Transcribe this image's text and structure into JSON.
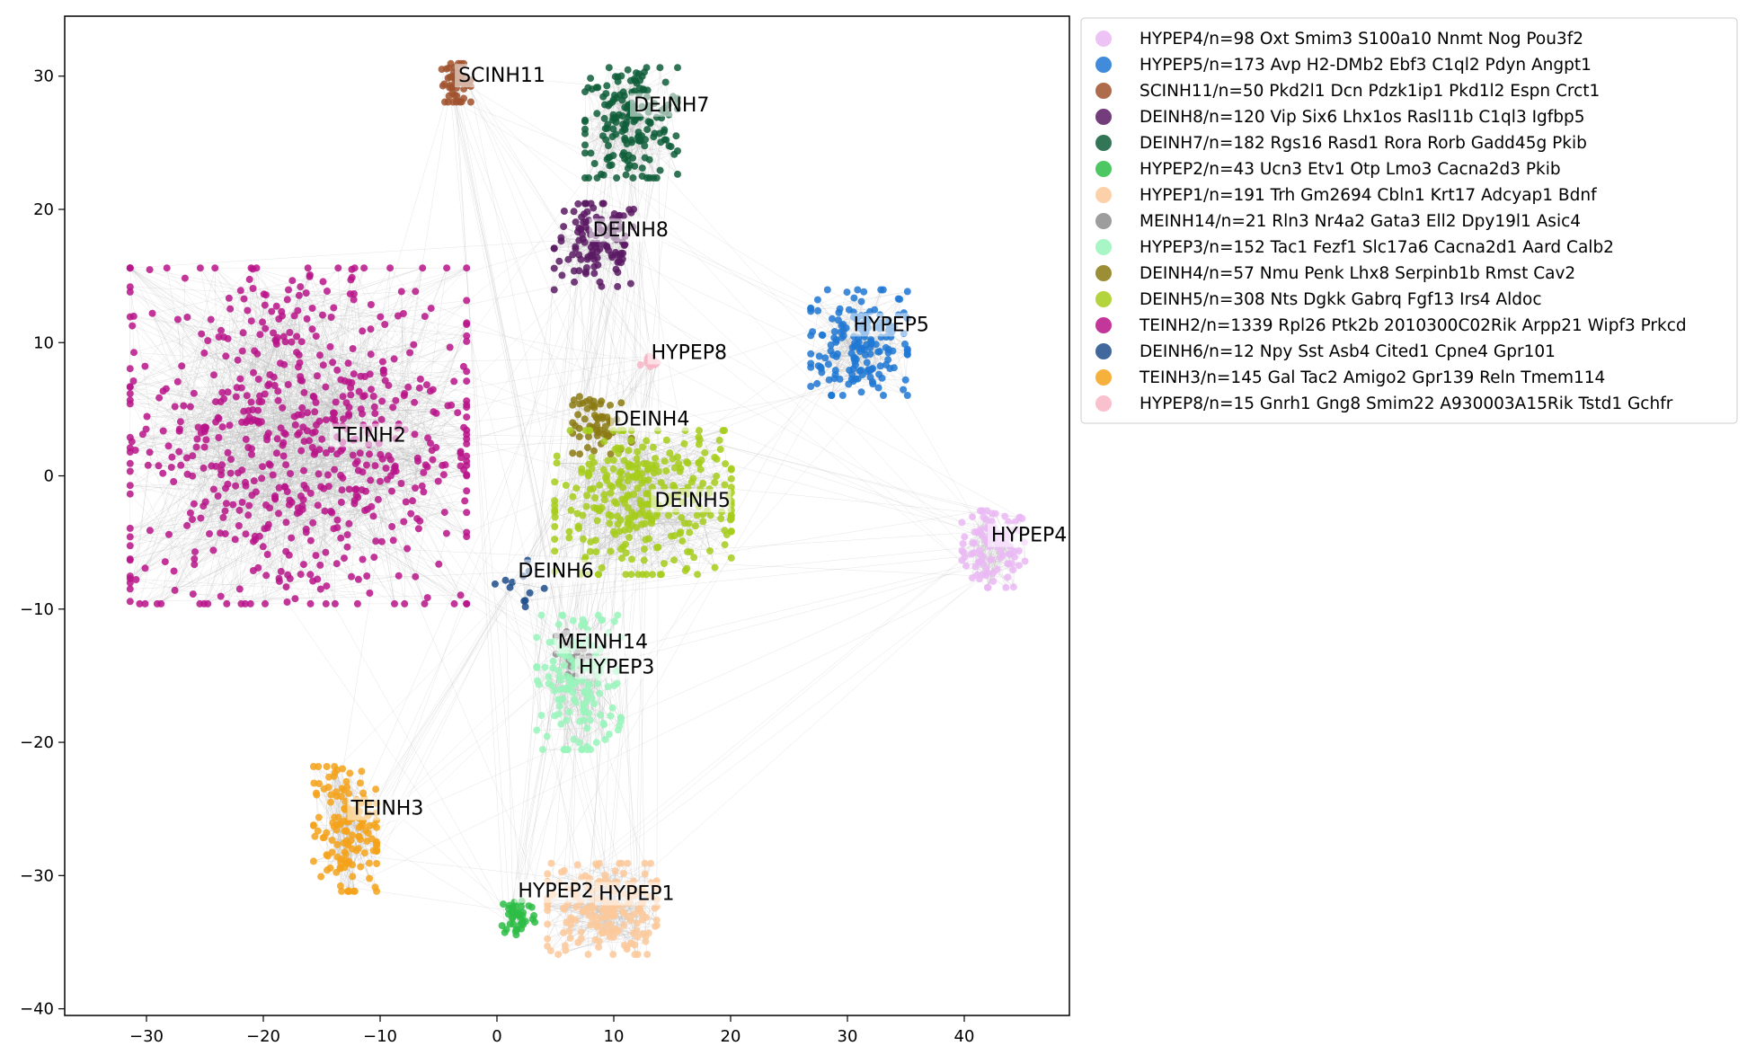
{
  "chart_data": {
    "type": "scatter",
    "title": "",
    "xlabel": "",
    "ylabel": "",
    "xlim": [
      -37,
      49
    ],
    "ylim": [
      -40.5,
      34.5
    ],
    "xticks": [
      -30,
      -20,
      -10,
      0,
      10,
      20,
      30,
      40
    ],
    "yticks": [
      -40,
      -30,
      -20,
      -10,
      0,
      10,
      20,
      30
    ],
    "xtick_labels": [
      "−30",
      "−20",
      "−10",
      "0",
      "10",
      "20",
      "30",
      "40"
    ],
    "ytick_labels": [
      "−40",
      "−30",
      "−20",
      "−10",
      "0",
      "10",
      "20",
      "30"
    ],
    "grid": false,
    "legend_position": "outside-right",
    "edge_color": "#b4b4b4",
    "series": [
      {
        "name": "HYPEP4/n=98 Oxt Smim3 S100a10 Nnmt Nog Pou3f2",
        "label": "HYPEP4",
        "color": "#eab8f4",
        "n": 98,
        "center": [
          42.5,
          -5.5
        ],
        "spread": [
          1.5,
          1.6
        ]
      },
      {
        "name": "HYPEP5/n=173 Avp H2-DMb2 Ebf3 C1ql2 Pdyn Angpt1",
        "label": "HYPEP5",
        "color": "#1f78d4",
        "n": 173,
        "center": [
          31.0,
          10.0
        ],
        "spread": [
          2.3,
          2.2
        ]
      },
      {
        "name": "SCINH11/n=50 Pkd2l1 Dcn Pdzk1ip1 Pkd1l2 Espn Crct1",
        "label": "SCINH11",
        "color": "#a0522d",
        "n": 50,
        "center": [
          -3.5,
          29.5
        ],
        "spread": [
          0.7,
          0.8
        ]
      },
      {
        "name": "DEINH8/n=120 Vip Six6 Lhx1os Rasl11b C1ql3 Igfbp5",
        "label": "DEINH8",
        "color": "#5b1a63",
        "n": 120,
        "center": [
          8.5,
          17.2
        ],
        "spread": [
          2.0,
          1.8
        ]
      },
      {
        "name": "DEINH7/n=182 Rgs16 Rasd1 Rora Rorb Gadd45g Pkib",
        "label": "DEINH7",
        "color": "#0f5e3a",
        "n": 182,
        "center": [
          11.5,
          26.5
        ],
        "spread": [
          2.2,
          2.3
        ]
      },
      {
        "name": "HYPEP2/n=43 Ucn3 Etv1 Otp Lmo3 Cacna2d3 Pkib",
        "label": "HYPEP2",
        "color": "#2dbd45",
        "n": 43,
        "center": [
          1.8,
          -33.0
        ],
        "spread": [
          0.8,
          0.8
        ]
      },
      {
        "name": "HYPEP1/n=191 Trh Gm2694 Cbln1 Krt17 Adcyap1 Bdnf",
        "label": "HYPEP1",
        "color": "#fbc99b",
        "n": 191,
        "center": [
          9.0,
          -32.5
        ],
        "spread": [
          2.6,
          1.9
        ]
      },
      {
        "name": "MEINH14/n=21 Rln3 Nr4a2 Gata3 Ell2 Dpy19l1 Asic4",
        "label": "MEINH14",
        "color": "#8c8c8c",
        "n": 21,
        "center": [
          6.5,
          -13.5
        ],
        "spread": [
          0.8,
          1.0
        ]
      },
      {
        "name": "HYPEP3/n=152 Tac1 Fezf1 Slc17a6 Cacna2d1 Aard Calb2",
        "label": "HYPEP3",
        "color": "#99f5bb",
        "n": 152,
        "center": [
          7.0,
          -15.5
        ],
        "spread": [
          2.0,
          2.8
        ]
      },
      {
        "name": "DEINH4/n=57 Nmu Penk Lhx8 Serpinb1b Rmst Cav2",
        "label": "DEINH4",
        "color": "#8b7a12",
        "n": 57,
        "center": [
          9.0,
          3.8
        ],
        "spread": [
          1.4,
          1.2
        ]
      },
      {
        "name": "DEINH5/n=308 Nts Dgkk Gabrq Fgf13 Irs4 Aldoc",
        "label": "DEINH5",
        "color": "#a6cc1a",
        "n": 308,
        "center": [
          12.5,
          -2.0
        ],
        "spread": [
          4.2,
          3.0
        ]
      },
      {
        "name": "TEINH2/n=1339 Rpl26 Ptk2b 2010300C02Rik Arpp21 Wipf3 Prkcd",
        "label": "TEINH2",
        "color": "#b8148a",
        "n": 1339,
        "center": [
          -17.0,
          3.0
        ],
        "spread": [
          8.0,
          7.0
        ]
      },
      {
        "name": "DEINH6/n=12 Npy Sst Asb4 Cited1 Cpne4 Gpr101",
        "label": "DEINH6",
        "color": "#1f4e8c",
        "n": 12,
        "center": [
          2.0,
          -8.5
        ],
        "spread": [
          1.2,
          1.2
        ]
      },
      {
        "name": "TEINH3/n=145 Gal Tac2 Amigo2 Gpr139 Reln Tmem114",
        "label": "TEINH3",
        "color": "#f5a21a",
        "n": 145,
        "center": [
          -13.0,
          -26.5
        ],
        "spread": [
          1.5,
          2.6
        ]
      },
      {
        "name": "HYPEP8/n=15 Gnrh1 Gng8 Smim22 A930003A15Rik Tstd1 Gchfr",
        "label": "HYPEP8",
        "color": "#f8b6c6",
        "n": 15,
        "center": [
          13.0,
          8.6
        ],
        "spread": [
          0.4,
          0.3
        ]
      }
    ],
    "annotations": [
      {
        "text": "HYPEP4",
        "x": 42.3,
        "y": -4.8
      },
      {
        "text": "HYPEP5",
        "x": 30.5,
        "y": 11.0
      },
      {
        "text": "SCINH11",
        "x": -3.3,
        "y": 29.7
      },
      {
        "text": "DEINH7",
        "x": 11.7,
        "y": 27.5
      },
      {
        "text": "DEINH8",
        "x": 8.2,
        "y": 18.1
      },
      {
        "text": "HYPEP8",
        "x": 13.2,
        "y": 8.9
      },
      {
        "text": "DEINH4",
        "x": 10.0,
        "y": 3.9
      },
      {
        "text": "TEINH2",
        "x": -14.0,
        "y": 2.7
      },
      {
        "text": "DEINH5",
        "x": 13.5,
        "y": -2.2
      },
      {
        "text": "DEINH6",
        "x": 1.8,
        "y": -7.5
      },
      {
        "text": "MEINH14",
        "x": 5.2,
        "y": -12.8
      },
      {
        "text": "HYPEP3",
        "x": 7.0,
        "y": -14.7
      },
      {
        "text": "TEINH3",
        "x": -12.5,
        "y": -25.3
      },
      {
        "text": "HYPEP2",
        "x": 1.8,
        "y": -31.5
      },
      {
        "text": "HYPEP1",
        "x": 8.7,
        "y": -31.7
      }
    ]
  }
}
